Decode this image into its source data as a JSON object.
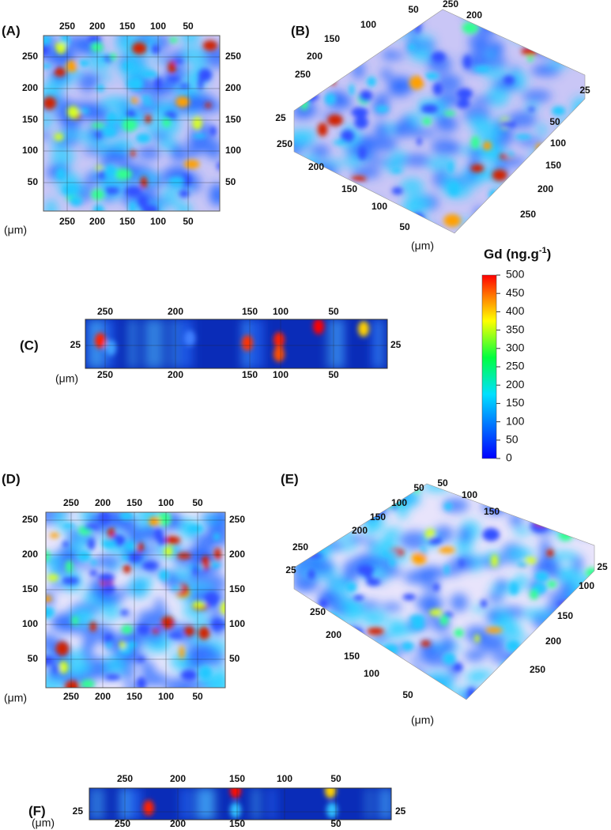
{
  "panels": [
    {
      "label": "(A)",
      "unit": "(μm)",
      "ticks": {
        "top": [
          250,
          200,
          150,
          100,
          50
        ],
        "bottom": [
          250,
          200,
          150,
          100,
          50
        ],
        "left": [
          250,
          200,
          150,
          100,
          50
        ],
        "right": [
          250,
          200,
          150,
          100,
          50
        ]
      }
    },
    {
      "label": "(B)",
      "unit": "(μm)",
      "ticks": {
        "back_left": [
          250,
          200,
          150,
          100,
          50
        ],
        "back_right": [
          250,
          200
        ],
        "depth_left": [
          25
        ],
        "depth_right": [
          25
        ],
        "front_right": [
          50,
          100,
          150,
          200,
          250
        ],
        "front_left": [
          250,
          200,
          150,
          100,
          50
        ]
      }
    },
    {
      "label": "(C)",
      "unit": "(μm)",
      "ticks": {
        "top": [
          250,
          200,
          150,
          100,
          50
        ],
        "bottom": [
          250,
          200,
          150,
          100,
          50
        ],
        "left": [
          25
        ],
        "right": [
          25
        ]
      }
    },
    {
      "label": "(D)",
      "unit": "(μm)",
      "ticks": {
        "top": [
          250,
          200,
          150,
          100,
          50
        ],
        "bottom": [
          250,
          200,
          150,
          100,
          50
        ],
        "left": [
          250,
          200,
          150,
          100,
          50
        ],
        "right": [
          250,
          200,
          150,
          100,
          50
        ]
      }
    },
    {
      "label": "(E)",
      "unit": "(μm)",
      "ticks": {
        "back_left": [
          250,
          200,
          150,
          100,
          50
        ],
        "back_right": [
          50,
          100,
          150
        ],
        "depth_left": [
          25
        ],
        "depth_right": [
          25
        ],
        "front_right": [
          100,
          150,
          200,
          250
        ],
        "front_left": [
          250,
          200,
          150,
          100,
          50
        ]
      }
    },
    {
      "label": "(F)",
      "unit": "(μm)",
      "ticks": {
        "top": [
          250,
          200,
          150,
          100,
          50
        ],
        "bottom": [
          250,
          200,
          150,
          50
        ],
        "left": [
          25
        ],
        "right": [
          25
        ]
      }
    }
  ],
  "colorbar": {
    "title": "Gd (ng.g",
    "title_sup": "-1",
    "title_end": ")",
    "ticks": [
      0,
      50,
      100,
      150,
      200,
      250,
      300,
      350,
      400,
      450,
      500
    ]
  }
}
